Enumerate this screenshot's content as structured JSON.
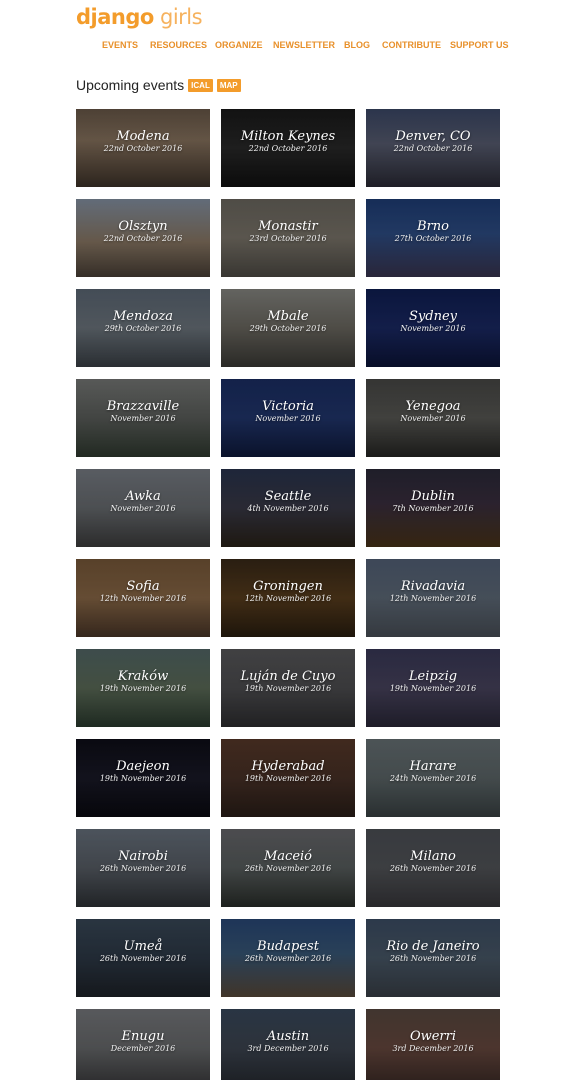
{
  "logo": {
    "bold": "django",
    "light": " girls"
  },
  "nav": [
    {
      "label": "EVENTS"
    },
    {
      "label": "RESOURCES"
    },
    {
      "label": "ORGANIZE"
    },
    {
      "label": "NEWSLETTER"
    },
    {
      "label": "BLOG"
    },
    {
      "label": "CONTRIBUTE"
    },
    {
      "label": "SUPPORT US"
    }
  ],
  "heading": {
    "title": "Upcoming events",
    "ical": "ICAL",
    "map": "MAP"
  },
  "events": [
    {
      "city": "Modena",
      "date": "22nd October 2016",
      "bg": "linear-gradient(180deg,#6b5a4a 0%,#8a7560 40%,#3e3329 100%)"
    },
    {
      "city": "Milton Keynes",
      "date": "22nd October 2016",
      "bg": "linear-gradient(180deg,#1a1a1a 0%,#2a2a2a 50%,#101010 100%)"
    },
    {
      "city": "Denver, CO",
      "date": "22nd October 2016",
      "bg": "linear-gradient(180deg,#3d4a6a 0%,#5a5f73 45%,#2a2a35 100%)"
    },
    {
      "city": "Olsztyn",
      "date": "22nd October 2016",
      "bg": "linear-gradient(180deg,#8896a8 0%,#8c7a66 55%,#4a4037 100%)"
    },
    {
      "city": "Monastir",
      "date": "23rd October 2016",
      "bg": "linear-gradient(180deg,#6e6a62 0%,#7d776c 50%,#4f4c46 100%)"
    },
    {
      "city": "Brno",
      "date": "27th October 2016",
      "bg": "linear-gradient(180deg,#1f3f7a 0%,#2f4f88 45%,#3a3550 100%)"
    },
    {
      "city": "Mendoza",
      "date": "29th October 2016",
      "bg": "linear-gradient(180deg,#5e6a78 0%,#6f7880 50%,#3a4046 100%)"
    },
    {
      "city": "Mbale",
      "date": "29th October 2016",
      "bg": "linear-gradient(180deg,#8a8a85 0%,#6d6a62 50%,#3b3a36 100%)"
    },
    {
      "city": "Sydney",
      "date": "November 2016",
      "bg": "linear-gradient(180deg,#0f1f55 0%,#1b2a66 50%,#0c1438 100%)"
    },
    {
      "city": "Brazzaville",
      "date": "November 2016",
      "bg": "linear-gradient(180deg,#7a7c7a 0%,#5d605d 50%,#2f3a2f 100%)"
    },
    {
      "city": "Victoria",
      "date": "November 2016",
      "bg": "linear-gradient(180deg,#1b2f66 0%,#22376f 50%,#0f1a3c 100%)"
    },
    {
      "city": "Yenegoa",
      "date": "November 2016",
      "bg": "linear-gradient(180deg,#4a4a48 0%,#5a5a56 50%,#262624 100%)"
    },
    {
      "city": "Awka",
      "date": "November 2016",
      "bg": "linear-gradient(180deg,#7b8088 0%,#6a6e72 50%,#3d3d3d 100%)"
    },
    {
      "city": "Seattle",
      "date": "4th November 2016",
      "bg": "linear-gradient(180deg,#2a3550 0%,#3a3a48 50%,#2a2218 100%)"
    },
    {
      "city": "Dublin",
      "date": "7th November 2016",
      "bg": "linear-gradient(180deg,#2b2a3a 0%,#3c3040 45%,#4a3418 100%)"
    },
    {
      "city": "Sofia",
      "date": "12th November 2016",
      "bg": "linear-gradient(180deg,#7a5a3a 0%,#8c6a48 50%,#4a3628 100%)"
    },
    {
      "city": "Groningen",
      "date": "12th November 2016",
      "bg": "linear-gradient(180deg,#3a2a18 0%,#5a3e1e 50%,#2a1e10 100%)"
    },
    {
      "city": "Rivadavia",
      "date": "12th November 2016",
      "bg": "linear-gradient(180deg,#55647a 0%,#606c7a 50%,#4a5058 100%)"
    },
    {
      "city": "Kraków",
      "date": "19th November 2016",
      "bg": "linear-gradient(180deg,#556a6a 0%,#5e6e5a 50%,#2a3a2e 100%)"
    },
    {
      "city": "Luján de Cuyo",
      "date": "19th November 2016",
      "bg": "linear-gradient(180deg,#5a5a5c 0%,#4f4f52 50%,#2e2e30 100%)"
    },
    {
      "city": "Leipzig",
      "date": "19th November 2016",
      "bg": "linear-gradient(180deg,#3a3a5a 0%,#4a4560 50%,#2a2838 100%)"
    },
    {
      "city": "Daejeon",
      "date": "19th November 2016",
      "bg": "linear-gradient(180deg,#0e0e18 0%,#1a1a28 50%,#0a0a10 100%)"
    },
    {
      "city": "Hyderabad",
      "date": "19th November 2016",
      "bg": "linear-gradient(180deg,#5a3a2a 0%,#4a3228 50%,#2a1e18 100%)"
    },
    {
      "city": "Harare",
      "date": "24th November 2016",
      "bg": "linear-gradient(180deg,#6a7478 0%,#5e686a 50%,#3a4244 100%)"
    },
    {
      "city": "Nairobi",
      "date": "26th November 2016",
      "bg": "linear-gradient(180deg,#6a7480 0%,#5a6068 50%,#2e3236 100%)"
    },
    {
      "city": "Maceió",
      "date": "26th November 2016",
      "bg": "linear-gradient(180deg,#6a6a6e 0%,#5a6060 50%,#2a2e2a 100%)"
    },
    {
      "city": "Milano",
      "date": "26th November 2016",
      "bg": "linear-gradient(180deg,#4e5258 0%,#54565a 50%,#38383c 100%)"
    },
    {
      "city": "Umeå",
      "date": "26th November 2016",
      "bg": "linear-gradient(180deg,#3a4a5a 0%,#2e3a48 50%,#1e2228 100%)"
    },
    {
      "city": "Budapest",
      "date": "26th November 2016",
      "bg": "linear-gradient(180deg,#2a4a7a 0%,#3a5a7a 45%,#5a4a3a 100%)"
    },
    {
      "city": "Rio de Janeiro",
      "date": "26th November 2016",
      "bg": "linear-gradient(180deg,#3e5068 0%,#4a5a6a 50%,#3a4048 100%)"
    },
    {
      "city": "Enugu",
      "date": "December 2016",
      "bg": "linear-gradient(180deg,#7a7c80 0%,#6a6c6e 50%,#3a3a3c 100%)"
    },
    {
      "city": "Austin",
      "date": "3rd December 2016",
      "bg": "linear-gradient(180deg,#3a4a5e 0%,#3e4652 50%,#262a30 100%)"
    },
    {
      "city": "Owerri",
      "date": "3rd December 2016",
      "bg": "linear-gradient(180deg,#5a4a42 0%,#6a4a40 50%,#3a2a26 100%)"
    }
  ]
}
